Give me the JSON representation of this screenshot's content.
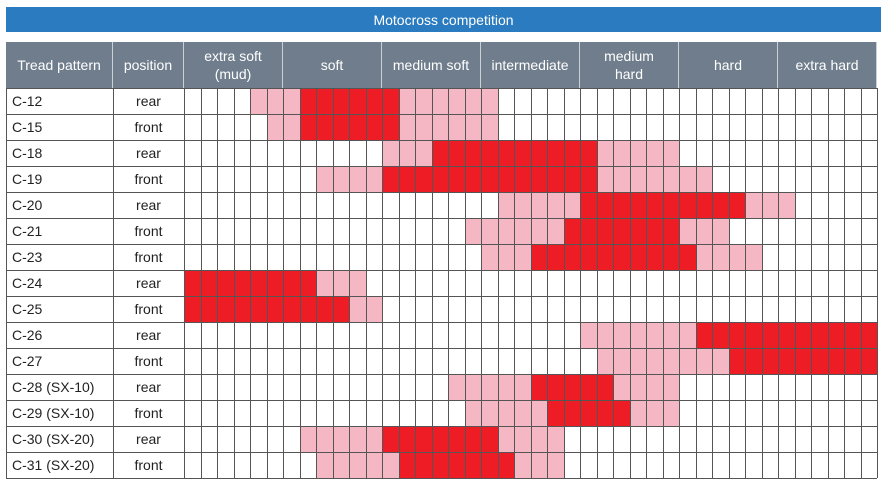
{
  "title": "Motocross competition",
  "colors": {
    "primary": "#ee1c25",
    "secondary": "#f5b7c4",
    "header_bg": "#6f7d8c",
    "title_bg": "#2a7bbf"
  },
  "chart_data": {
    "type": "heatmap",
    "title": "Motocross competition",
    "columns": [
      "Tread pattern",
      "position"
    ],
    "categories": [
      "extra soft\n(mud)",
      "soft",
      "medium soft",
      "intermediate",
      "medium\nhard",
      "hard",
      "extra hard"
    ],
    "cells_per_category": 6,
    "cell_level_key": {
      "0": "none",
      "1": "secondary",
      "2": "primary"
    },
    "rows": [
      {
        "tread": "C-12",
        "position": "rear",
        "cells": [
          0,
          0,
          0,
          0,
          1,
          1,
          1,
          2,
          2,
          2,
          2,
          2,
          2,
          1,
          1,
          1,
          1,
          1,
          1,
          0,
          0,
          0,
          0,
          0,
          0,
          0,
          0,
          0,
          0,
          0,
          0,
          0,
          0,
          0,
          0,
          0,
          0,
          0,
          0,
          0,
          0,
          0
        ]
      },
      {
        "tread": "C-15",
        "position": "front",
        "cells": [
          0,
          0,
          0,
          0,
          0,
          1,
          1,
          2,
          2,
          2,
          2,
          2,
          2,
          1,
          1,
          1,
          1,
          1,
          1,
          0,
          0,
          0,
          0,
          0,
          0,
          0,
          0,
          0,
          0,
          0,
          0,
          0,
          0,
          0,
          0,
          0,
          0,
          0,
          0,
          0,
          0,
          0
        ]
      },
      {
        "tread": "C-18",
        "position": "rear",
        "cells": [
          0,
          0,
          0,
          0,
          0,
          0,
          0,
          0,
          0,
          0,
          0,
          0,
          1,
          1,
          1,
          2,
          2,
          2,
          2,
          2,
          2,
          2,
          2,
          2,
          2,
          1,
          1,
          1,
          1,
          1,
          0,
          0,
          0,
          0,
          0,
          0,
          0,
          0,
          0,
          0,
          0,
          0
        ]
      },
      {
        "tread": "C-19",
        "position": "front",
        "cells": [
          0,
          0,
          0,
          0,
          0,
          0,
          0,
          0,
          1,
          1,
          1,
          1,
          2,
          2,
          2,
          2,
          2,
          2,
          2,
          2,
          2,
          2,
          2,
          2,
          2,
          1,
          1,
          1,
          1,
          1,
          1,
          1,
          0,
          0,
          0,
          0,
          0,
          0,
          0,
          0,
          0,
          0
        ]
      },
      {
        "tread": "C-20",
        "position": "rear",
        "cells": [
          0,
          0,
          0,
          0,
          0,
          0,
          0,
          0,
          0,
          0,
          0,
          0,
          0,
          0,
          0,
          0,
          0,
          0,
          0,
          1,
          1,
          1,
          1,
          1,
          2,
          2,
          2,
          2,
          2,
          2,
          2,
          2,
          2,
          2,
          1,
          1,
          1,
          0,
          0,
          0,
          0,
          0
        ]
      },
      {
        "tread": "C-21",
        "position": "front",
        "cells": [
          0,
          0,
          0,
          0,
          0,
          0,
          0,
          0,
          0,
          0,
          0,
          0,
          0,
          0,
          0,
          0,
          0,
          1,
          1,
          1,
          1,
          1,
          1,
          2,
          2,
          2,
          2,
          2,
          2,
          2,
          1,
          1,
          1,
          0,
          0,
          0,
          0,
          0,
          0,
          0,
          0,
          0
        ]
      },
      {
        "tread": "C-23",
        "position": "front",
        "cells": [
          0,
          0,
          0,
          0,
          0,
          0,
          0,
          0,
          0,
          0,
          0,
          0,
          0,
          0,
          0,
          0,
          0,
          0,
          1,
          1,
          1,
          2,
          2,
          2,
          2,
          2,
          2,
          2,
          2,
          2,
          2,
          1,
          1,
          1,
          1,
          0,
          0,
          0,
          0,
          0,
          0,
          0
        ]
      },
      {
        "tread": "C-24",
        "position": "rear",
        "cells": [
          2,
          2,
          2,
          2,
          2,
          2,
          2,
          2,
          1,
          1,
          1,
          0,
          0,
          0,
          0,
          0,
          0,
          0,
          0,
          0,
          0,
          0,
          0,
          0,
          0,
          0,
          0,
          0,
          0,
          0,
          0,
          0,
          0,
          0,
          0,
          0,
          0,
          0,
          0,
          0,
          0,
          0
        ]
      },
      {
        "tread": "C-25",
        "position": "front",
        "cells": [
          2,
          2,
          2,
          2,
          2,
          2,
          2,
          2,
          2,
          2,
          1,
          1,
          0,
          0,
          0,
          0,
          0,
          0,
          0,
          0,
          0,
          0,
          0,
          0,
          0,
          0,
          0,
          0,
          0,
          0,
          0,
          0,
          0,
          0,
          0,
          0,
          0,
          0,
          0,
          0,
          0,
          0
        ]
      },
      {
        "tread": "C-26",
        "position": "rear",
        "cells": [
          0,
          0,
          0,
          0,
          0,
          0,
          0,
          0,
          0,
          0,
          0,
          0,
          0,
          0,
          0,
          0,
          0,
          0,
          0,
          0,
          0,
          0,
          0,
          0,
          1,
          1,
          1,
          1,
          1,
          1,
          1,
          2,
          2,
          2,
          2,
          2,
          2,
          2,
          2,
          2,
          2,
          2
        ]
      },
      {
        "tread": "C-27",
        "position": "front",
        "cells": [
          0,
          0,
          0,
          0,
          0,
          0,
          0,
          0,
          0,
          0,
          0,
          0,
          0,
          0,
          0,
          0,
          0,
          0,
          0,
          0,
          0,
          0,
          0,
          0,
          0,
          1,
          1,
          1,
          1,
          1,
          1,
          1,
          1,
          2,
          2,
          2,
          2,
          2,
          2,
          2,
          2,
          2
        ]
      },
      {
        "tread": "C-28 (SX-10)",
        "position": "rear",
        "cells": [
          0,
          0,
          0,
          0,
          0,
          0,
          0,
          0,
          0,
          0,
          0,
          0,
          0,
          0,
          0,
          0,
          1,
          1,
          1,
          1,
          1,
          2,
          2,
          2,
          2,
          2,
          1,
          1,
          1,
          1,
          0,
          0,
          0,
          0,
          0,
          0,
          0,
          0,
          0,
          0,
          0,
          0
        ]
      },
      {
        "tread": "C-29 (SX-10)",
        "position": "front",
        "cells": [
          0,
          0,
          0,
          0,
          0,
          0,
          0,
          0,
          0,
          0,
          0,
          0,
          0,
          0,
          0,
          0,
          0,
          1,
          1,
          1,
          1,
          1,
          2,
          2,
          2,
          2,
          2,
          1,
          1,
          1,
          0,
          0,
          0,
          0,
          0,
          0,
          0,
          0,
          0,
          0,
          0,
          0
        ]
      },
      {
        "tread": "C-30 (SX-20)",
        "position": "rear",
        "cells": [
          0,
          0,
          0,
          0,
          0,
          0,
          0,
          1,
          1,
          1,
          1,
          1,
          2,
          2,
          2,
          2,
          2,
          2,
          2,
          1,
          1,
          1,
          1,
          0,
          0,
          0,
          0,
          0,
          0,
          0,
          0,
          0,
          0,
          0,
          0,
          0,
          0,
          0,
          0,
          0,
          0,
          0
        ]
      },
      {
        "tread": "C-31 (SX-20)",
        "position": "front",
        "cells": [
          0,
          0,
          0,
          0,
          0,
          0,
          0,
          0,
          1,
          1,
          1,
          1,
          1,
          2,
          2,
          2,
          2,
          2,
          2,
          2,
          1,
          1,
          1,
          0,
          0,
          0,
          0,
          0,
          0,
          0,
          0,
          0,
          0,
          0,
          0,
          0,
          0,
          0,
          0,
          0,
          0,
          0
        ]
      }
    ]
  }
}
